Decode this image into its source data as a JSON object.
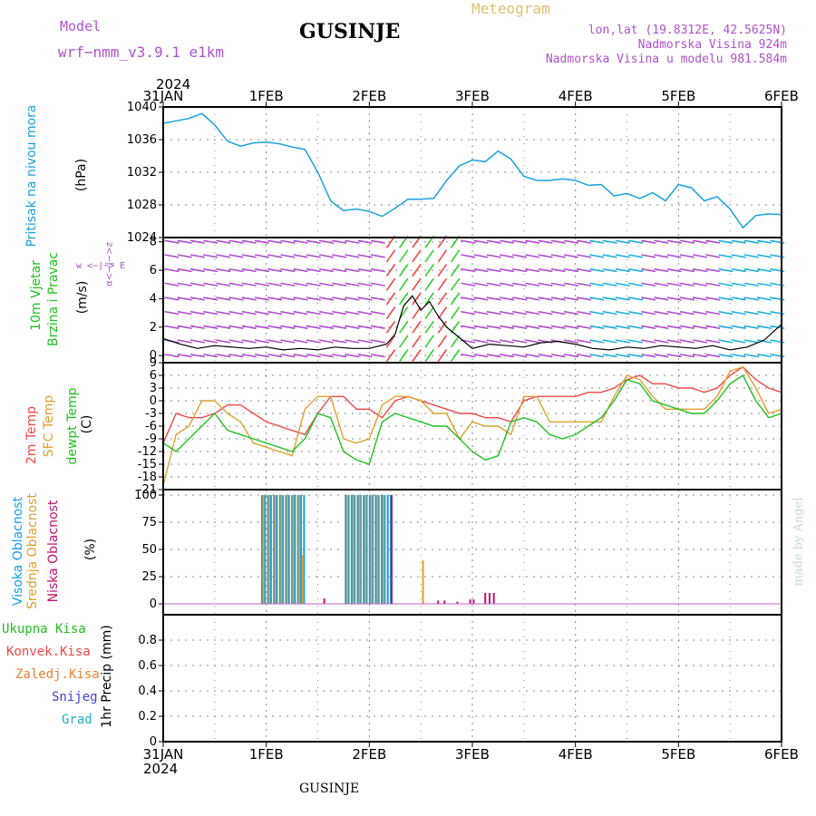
{
  "header": {
    "model_label": "Model",
    "model_name": "wrf−nmm_v3.9.1  e1km",
    "station_title": "GUSINJE",
    "product": "Meteogram",
    "lonlat": "lon,lat (19.8312E, 42.5625N)",
    "elevation": "Nadmorska Visina 924m",
    "model_elevation": "Nadmorska Visina u modelu 981.584m",
    "year": "2024",
    "footer_title": "GUSINJE",
    "watermark": "made by Angel"
  },
  "colors": {
    "pressure": "#1aa0e0",
    "t2m": "#f04848",
    "tsfc": "#e0a030",
    "dewpoint": "#20c020",
    "high_cloud": "#10a0f0",
    "mid_cloud": "#e0a030",
    "low_cloud": "#c01070",
    "wind_label": "#20c020",
    "wind_dir": "#b050d0",
    "precip_total": "#20c020",
    "precip_conv": "#f04848",
    "precip_grauped": "#f08030",
    "precip_snow": "#4040e0",
    "precip_grad": "#20b0c0"
  },
  "x_axis": {
    "ticks": [
      "31JAN",
      "1FEB",
      "2FEB",
      "3FEB",
      "4FEB",
      "5FEB",
      "6FEB"
    ],
    "start": "2024-01-31T00",
    "end": "2024-02-06T00"
  },
  "panels": {
    "pressure": {
      "labels": [
        "Pritisak na nivou mora",
        "(hPa)"
      ],
      "yticks": [
        "1040",
        "1036",
        "1032",
        "1028",
        "1024"
      ]
    },
    "wind": {
      "labels": [
        "10m Vjetar",
        "Brzina i Pravac",
        "(m/s)"
      ],
      "yticks": [
        "8",
        "6",
        "4",
        "2",
        "0"
      ],
      "compass": "w  <−|−>  E",
      "compass_ns": "α<−|−>z"
    },
    "temperature": {
      "labels": [
        "2m Temp",
        "SFC Temp",
        "dewpt Temp",
        "(C)"
      ],
      "yticks": [
        "9",
        "6",
        "3",
        "0",
        "-3",
        "-6",
        "-9",
        "-12",
        "-15",
        "-18",
        "-21"
      ]
    },
    "cloud": {
      "labels": [
        "Visoka Oblacnost",
        "Srednja Oblacnost",
        "Niska Oblacnost",
        "(%)"
      ],
      "yticks": [
        "100",
        "75",
        "50",
        "25",
        "0"
      ]
    },
    "precip": {
      "labels": [
        "Ukupna  Kisa",
        "Konvek.Kisa",
        "Zaledj.Kisa",
        "Snijeg",
        "Grad",
        "1hr Precip (mm)"
      ],
      "yticks": [
        "0.8",
        "0.6",
        "0.4",
        "0.2",
        "0"
      ]
    }
  },
  "chart_data": [
    {
      "type": "line",
      "title": "Pritisak na nivou mora",
      "ylabel": "(hPa)",
      "ylim": [
        1024,
        1040
      ],
      "x_hours": [
        0,
        3,
        6,
        9,
        12,
        15,
        18,
        21,
        24,
        27,
        30,
        33,
        36,
        39,
        42,
        45,
        48,
        51,
        54,
        57,
        60,
        63,
        66,
        69,
        72,
        75,
        78,
        81,
        84,
        87,
        90,
        93,
        96,
        99,
        102,
        105,
        108,
        111,
        114,
        117,
        120,
        123,
        126,
        129,
        132,
        135,
        138,
        141,
        144
      ],
      "series": [
        {
          "name": "Pritisak na nivou mora",
          "values": [
            1038,
            1038.3,
            1038.6,
            1039.2,
            1037.8,
            1035.8,
            1035.2,
            1035.6,
            1035.7,
            1035.5,
            1035.1,
            1034.8,
            1032,
            1028.5,
            1027.3,
            1027.5,
            1027.2,
            1026.6,
            1027.6,
            1028.7,
            1028.7,
            1028.8,
            1031,
            1032.8,
            1033.5,
            1033.3,
            1034.6,
            1033.6,
            1031.5,
            1031,
            1031,
            1031.2,
            1031,
            1030.4,
            1030.5,
            1029.1,
            1029.4,
            1028.8,
            1029.5,
            1028.5,
            1030.5,
            1030.1,
            1028.5,
            1029,
            1027.5,
            1025.2,
            1026.7,
            1026.9,
            1026.8
          ]
        }
      ]
    },
    {
      "type": "line",
      "title": "10m Vjetar Brzina i Pravac",
      "ylabel": "(m/s)",
      "ylim": [
        -0.5,
        8.3
      ],
      "x_hours": [
        0,
        4,
        8,
        12,
        16,
        20,
        24,
        28,
        32,
        36,
        40,
        44,
        48,
        52,
        54,
        56,
        58,
        60,
        62,
        64,
        66,
        68,
        70,
        72,
        76,
        80,
        84,
        88,
        92,
        96,
        100,
        104,
        108,
        112,
        116,
        120,
        124,
        128,
        132,
        136,
        140,
        144
      ],
      "series": [
        {
          "name": "Brzina",
          "values": [
            1.2,
            0.8,
            0.5,
            0.7,
            0.6,
            0.5,
            0.6,
            0.4,
            0.5,
            0.4,
            0.6,
            0.5,
            0.5,
            0.8,
            1.5,
            3.5,
            4.2,
            3.2,
            3.8,
            2.8,
            2.0,
            1.5,
            1.0,
            0.5,
            0.8,
            0.7,
            0.6,
            0.9,
            1.0,
            0.8,
            0.5,
            0.4,
            0.6,
            0.5,
            0.7,
            0.6,
            0.5,
            0.7,
            0.4,
            0.6,
            1.1,
            2.2
          ]
        }
      ]
    },
    {
      "type": "line",
      "title": "2m / SFC / dewpt Temp",
      "ylabel": "(C)",
      "ylim": [
        -21,
        9
      ],
      "x_hours": [
        0,
        3,
        6,
        9,
        12,
        15,
        18,
        21,
        24,
        27,
        30,
        33,
        36,
        39,
        42,
        45,
        48,
        51,
        54,
        57,
        60,
        63,
        66,
        69,
        72,
        75,
        78,
        81,
        84,
        87,
        90,
        93,
        96,
        99,
        102,
        105,
        108,
        111,
        114,
        117,
        120,
        123,
        126,
        129,
        132,
        135,
        138,
        141,
        144
      ],
      "series": [
        {
          "name": "2m Temp",
          "values": [
            -10,
            -3,
            -4,
            -4,
            -3,
            -1,
            -1,
            -3,
            -5,
            -6,
            -7,
            -8,
            -3,
            1,
            1,
            -2,
            -2,
            -4,
            0,
            1,
            0,
            -1,
            -2,
            -3,
            -3,
            -4,
            -4,
            -5,
            0,
            1,
            1,
            1,
            1,
            2,
            2,
            3,
            5,
            6,
            4,
            4,
            3,
            3,
            2,
            3,
            6,
            8,
            5,
            3,
            2
          ]
        },
        {
          "name": "SFC Temp",
          "values": [
            -20,
            -8,
            -6,
            0,
            0,
            -3,
            -5,
            -10,
            -11,
            -12,
            -13,
            -2,
            1,
            1,
            -9,
            -10,
            -9,
            -1,
            1,
            1,
            0,
            -3,
            -3,
            -9,
            -5,
            -6,
            -6,
            -8,
            1,
            1,
            -5,
            -5,
            -5,
            -5,
            -5,
            1,
            6,
            5,
            1,
            -2,
            -2,
            -2,
            -2,
            1,
            7,
            8,
            3,
            -3,
            -2
          ]
        },
        {
          "name": "dewpt Temp",
          "values": [
            -10,
            -12,
            -9,
            -6,
            -3,
            -7,
            -8,
            -9,
            -10,
            -11,
            -12,
            -9,
            -3,
            -4,
            -12,
            -14,
            -15,
            -5,
            -3,
            -4,
            -5,
            -6,
            -6,
            -9,
            -12,
            -14,
            -13,
            -5,
            -4,
            -5,
            -8,
            -9,
            -8,
            -6,
            -4,
            0,
            5,
            4,
            0,
            -1,
            -2,
            -3,
            -3,
            0,
            4,
            6,
            0,
            -4,
            -3
          ]
        }
      ]
    },
    {
      "type": "bar",
      "title": "Oblacnost",
      "ylabel": "(%)",
      "ylim": [
        0,
        100
      ],
      "series": [
        {
          "name": "Visoka Oblacnost",
          "x_hours": [
            23,
            23.7,
            24.4,
            25.1,
            25.8,
            26.5,
            27.2,
            27.9,
            28.6,
            29.3,
            30,
            30.7,
            31.4,
            32.1,
            32.8,
            42.5,
            43.2,
            43.9,
            44.6,
            45.3,
            46,
            46.7,
            47.4,
            48.1,
            48.8,
            49.5,
            50.2,
            50.9,
            51.6,
            52.3,
            53
          ],
          "values": [
            100,
            100,
            100,
            100,
            100,
            100,
            100,
            100,
            100,
            100,
            100,
            100,
            100,
            100,
            100,
            100,
            100,
            100,
            100,
            100,
            100,
            100,
            100,
            100,
            100,
            100,
            100,
            100,
            100,
            100,
            100
          ]
        },
        {
          "name": "Srednja Oblacnost",
          "x_hours": [
            23.3,
            24.7,
            26.1,
            27.5,
            28.9,
            30.3,
            31.7,
            32.5,
            42.9,
            44.3,
            45.7,
            47.1,
            48.5,
            49.9,
            51.3,
            60.5
          ],
          "values": [
            100,
            100,
            100,
            100,
            100,
            100,
            100,
            45,
            100,
            100,
            100,
            100,
            100,
            100,
            100,
            40
          ]
        },
        {
          "name": "Niska Oblacnost",
          "x_hours": [
            37.5,
            53.2,
            64,
            65.5,
            68.5,
            71.5,
            72.3,
            75,
            76,
            77
          ],
          "values": [
            5,
            100,
            3,
            3,
            2,
            4,
            4,
            10,
            10,
            10
          ]
        }
      ]
    },
    {
      "type": "bar",
      "title": "1hr Precip",
      "ylabel": "1hr Precip (mm)",
      "ylim": [
        0,
        1
      ],
      "series": [
        {
          "name": "Ukupna  Kisa",
          "values": []
        },
        {
          "name": "Konvek.Kisa",
          "values": []
        },
        {
          "name": "Zaledj.Kisa",
          "values": []
        },
        {
          "name": "Snijeg",
          "values": []
        },
        {
          "name": "Grad",
          "values": []
        }
      ]
    }
  ]
}
